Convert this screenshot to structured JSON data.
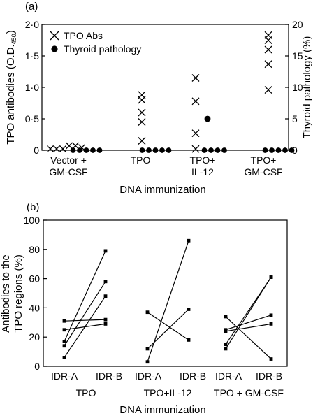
{
  "chart_data": [
    {
      "panel_label": "(a)",
      "type": "scatter",
      "ylabel_left": "TPO antibodies (O.D.",
      "ylabel_left_sub": "450",
      "ylabel_left_end": ")",
      "ylabel_right": "Thyroid pathology (%)",
      "xlabel": "DNA immunization",
      "ylim_left": [
        0,
        2.0
      ],
      "ylim_right": [
        0,
        20
      ],
      "yticks_left": [
        {
          "v": 0,
          "label": "0"
        },
        {
          "v": 0.5,
          "label": "0·5"
        },
        {
          "v": 1.0,
          "label": "1·0"
        },
        {
          "v": 1.5,
          "label": "1·5"
        },
        {
          "v": 2.0,
          "label": "2·0"
        }
      ],
      "yticks_right": [
        {
          "v": 0,
          "label": "0"
        },
        {
          "v": 5,
          "label": "5"
        },
        {
          "v": 10,
          "label": "10"
        },
        {
          "v": 15,
          "label": "15"
        },
        {
          "v": 20,
          "label": "20"
        }
      ],
      "legend": [
        {
          "marker": "x",
          "label": "TPO Abs"
        },
        {
          "marker": "dot",
          "label": "Thyroid pathology"
        }
      ],
      "groups": [
        {
          "label_lines": [
            "Vector +",
            "GM-CSF"
          ],
          "abs": [
            0,
            0,
            0,
            0.05,
            0.05,
            0.02
          ],
          "pathology": [
            0,
            0,
            0,
            0,
            0
          ]
        },
        {
          "label_lines": [
            "TPO"
          ],
          "abs": [
            0.88,
            0.8,
            0.6,
            0.45,
            0.15
          ],
          "pathology": [
            0,
            0,
            0,
            0,
            0
          ]
        },
        {
          "label_lines": [
            "TPO+",
            "IL-12"
          ],
          "abs": [
            1.15,
            0.78,
            0.27,
            0.02
          ],
          "pathology": [
            0,
            5,
            0,
            0,
            0
          ]
        },
        {
          "label_lines": [
            "TPO+",
            "GM-CSF"
          ],
          "abs": [
            1.83,
            1.75,
            1.6,
            1.37,
            0.96
          ],
          "pathology": [
            0,
            0,
            0,
            0,
            0
          ]
        }
      ]
    },
    {
      "panel_label": "(b)",
      "type": "line",
      "ylabel_lines": [
        "Antibodies to the",
        "TPO regions (%)"
      ],
      "xlabel": "DNA immunization",
      "ylim": [
        0,
        100
      ],
      "yticks": [
        0,
        20,
        40,
        60,
        80,
        100
      ],
      "groups": [
        {
          "label": "TPO",
          "x_labels": [
            "IDR-A",
            "IDR-B"
          ],
          "pairs": [
            [
              31,
              32
            ],
            [
              25,
              29
            ],
            [
              17,
              79
            ],
            [
              14,
              58
            ],
            [
              6,
              48
            ]
          ]
        },
        {
          "label": "TPO+IL-12",
          "x_labels": [
            "IDR-A",
            "IDR-B"
          ],
          "pairs": [
            [
              37,
              18
            ],
            [
              12,
              39
            ],
            [
              3,
              86
            ]
          ]
        },
        {
          "label": "TPO + GM-CSF",
          "x_labels": [
            "IDR-A",
            "IDR-B"
          ],
          "pairs": [
            [
              34,
              5
            ],
            [
              25,
              35
            ],
            [
              24,
              29
            ],
            [
              15,
              61
            ],
            [
              12,
              61
            ]
          ]
        }
      ]
    }
  ]
}
